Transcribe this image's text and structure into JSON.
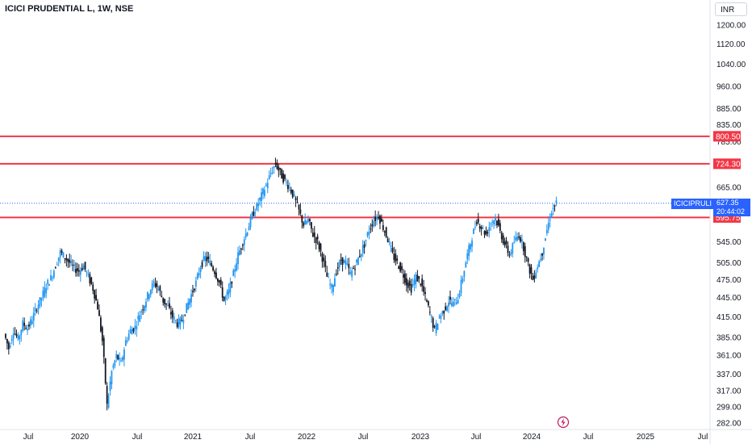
{
  "header": {
    "title": "ICICI PRUDENTIAL L, 1W, NSE",
    "currency": "INR"
  },
  "chart_data": {
    "type": "candlestick",
    "y_scale": "log",
    "y_ticks": [
      "1200.00",
      "1120.00",
      "1040.00",
      "960.00",
      "885.00",
      "835.00",
      "785.00",
      "665.00",
      "545.00",
      "505.00",
      "475.00",
      "445.00",
      "415.00",
      "385.00",
      "361.00",
      "337.00",
      "317.00",
      "299.00",
      "282.00"
    ],
    "x_ticks": [
      "Jul",
      "2020",
      "Jul",
      "2021",
      "Jul",
      "2022",
      "Jul",
      "2023",
      "Jul",
      "2024",
      "Jul",
      "2025",
      "Jul"
    ],
    "horizontal_levels": [
      {
        "value": 800.5,
        "label": "800.50"
      },
      {
        "value": 724.3,
        "label": "724.30"
      },
      {
        "value": 595.75,
        "label": "595.75"
      }
    ],
    "last_price": {
      "value": 627.35,
      "label": "627.35",
      "timer": "20:44:02",
      "symbol": "ICICIPRULI"
    },
    "series": [
      {
        "t": 0,
        "c": 390
      },
      {
        "t": 0.02,
        "c": 370
      },
      {
        "t": 0.04,
        "c": 395
      },
      {
        "t": 0.06,
        "c": 382
      },
      {
        "t": 0.08,
        "c": 405
      },
      {
        "t": 0.1,
        "c": 398
      },
      {
        "t": 0.12,
        "c": 412
      },
      {
        "t": 0.14,
        "c": 430
      },
      {
        "t": 0.16,
        "c": 445
      },
      {
        "t": 0.18,
        "c": 465
      },
      {
        "t": 0.2,
        "c": 478
      },
      {
        "t": 0.22,
        "c": 500
      },
      {
        "t": 0.24,
        "c": 525
      },
      {
        "t": 0.26,
        "c": 515
      },
      {
        "t": 0.28,
        "c": 505
      },
      {
        "t": 0.3,
        "c": 495
      },
      {
        "t": 0.32,
        "c": 490
      },
      {
        "t": 0.34,
        "c": 500
      },
      {
        "t": 0.36,
        "c": 480
      },
      {
        "t": 0.38,
        "c": 460
      },
      {
        "t": 0.4,
        "c": 430
      },
      {
        "t": 0.42,
        "c": 380
      },
      {
        "t": 0.44,
        "c": 300
      },
      {
        "t": 0.46,
        "c": 340
      },
      {
        "t": 0.48,
        "c": 360
      },
      {
        "t": 0.5,
        "c": 350
      },
      {
        "t": 0.52,
        "c": 380
      },
      {
        "t": 0.54,
        "c": 395
      },
      {
        "t": 0.56,
        "c": 400
      },
      {
        "t": 0.58,
        "c": 420
      },
      {
        "t": 0.6,
        "c": 435
      },
      {
        "t": 0.62,
        "c": 455
      },
      {
        "t": 0.64,
        "c": 470
      },
      {
        "t": 0.66,
        "c": 460
      },
      {
        "t": 0.68,
        "c": 440
      },
      {
        "t": 0.7,
        "c": 430
      },
      {
        "t": 0.72,
        "c": 415
      },
      {
        "t": 0.74,
        "c": 405
      },
      {
        "t": 0.76,
        "c": 410
      },
      {
        "t": 0.78,
        "c": 430
      },
      {
        "t": 0.8,
        "c": 450
      },
      {
        "t": 0.82,
        "c": 470
      },
      {
        "t": 0.84,
        "c": 500
      },
      {
        "t": 0.86,
        "c": 515
      },
      {
        "t": 0.88,
        "c": 505
      },
      {
        "t": 0.9,
        "c": 490
      },
      {
        "t": 0.92,
        "c": 470
      },
      {
        "t": 0.94,
        "c": 440
      },
      {
        "t": 0.96,
        "c": 455
      },
      {
        "t": 0.98,
        "c": 485
      },
      {
        "t": 1.0,
        "c": 520
      },
      {
        "t": 1.02,
        "c": 545
      },
      {
        "t": 1.04,
        "c": 570
      },
      {
        "t": 1.06,
        "c": 600
      },
      {
        "t": 1.08,
        "c": 620
      },
      {
        "t": 1.1,
        "c": 645
      },
      {
        "t": 1.12,
        "c": 670
      },
      {
        "t": 1.14,
        "c": 700
      },
      {
        "t": 1.16,
        "c": 725
      },
      {
        "t": 1.18,
        "c": 700
      },
      {
        "t": 1.2,
        "c": 680
      },
      {
        "t": 1.22,
        "c": 665
      },
      {
        "t": 1.24,
        "c": 640
      },
      {
        "t": 1.26,
        "c": 610
      },
      {
        "t": 1.28,
        "c": 580
      },
      {
        "t": 1.3,
        "c": 590
      },
      {
        "t": 1.32,
        "c": 560
      },
      {
        "t": 1.34,
        "c": 545
      },
      {
        "t": 1.36,
        "c": 515
      },
      {
        "t": 1.38,
        "c": 480
      },
      {
        "t": 1.4,
        "c": 460
      },
      {
        "t": 1.42,
        "c": 490
      },
      {
        "t": 1.44,
        "c": 510
      },
      {
        "t": 1.46,
        "c": 505
      },
      {
        "t": 1.48,
        "c": 485
      },
      {
        "t": 1.5,
        "c": 500
      },
      {
        "t": 1.52,
        "c": 520
      },
      {
        "t": 1.54,
        "c": 540
      },
      {
        "t": 1.56,
        "c": 570
      },
      {
        "t": 1.58,
        "c": 590
      },
      {
        "t": 1.6,
        "c": 600
      },
      {
        "t": 1.62,
        "c": 575
      },
      {
        "t": 1.64,
        "c": 550
      },
      {
        "t": 1.66,
        "c": 520
      },
      {
        "t": 1.68,
        "c": 505
      },
      {
        "t": 1.7,
        "c": 490
      },
      {
        "t": 1.72,
        "c": 470
      },
      {
        "t": 1.74,
        "c": 460
      },
      {
        "t": 1.76,
        "c": 480
      },
      {
        "t": 1.78,
        "c": 470
      },
      {
        "t": 1.8,
        "c": 445
      },
      {
        "t": 1.82,
        "c": 420
      },
      {
        "t": 1.84,
        "c": 395
      },
      {
        "t": 1.86,
        "c": 415
      },
      {
        "t": 1.88,
        "c": 425
      },
      {
        "t": 1.9,
        "c": 440
      },
      {
        "t": 1.92,
        "c": 435
      },
      {
        "t": 1.94,
        "c": 445
      },
      {
        "t": 1.96,
        "c": 480
      },
      {
        "t": 1.98,
        "c": 520
      },
      {
        "t": 2.0,
        "c": 555
      },
      {
        "t": 2.02,
        "c": 590
      },
      {
        "t": 2.04,
        "c": 575
      },
      {
        "t": 2.06,
        "c": 560
      },
      {
        "t": 2.08,
        "c": 585
      },
      {
        "t": 2.1,
        "c": 595
      },
      {
        "t": 2.12,
        "c": 565
      },
      {
        "t": 2.14,
        "c": 540
      },
      {
        "t": 2.16,
        "c": 520
      },
      {
        "t": 2.18,
        "c": 545
      },
      {
        "t": 2.2,
        "c": 560
      },
      {
        "t": 2.22,
        "c": 535
      },
      {
        "t": 2.24,
        "c": 500
      },
      {
        "t": 2.26,
        "c": 475
      },
      {
        "t": 2.28,
        "c": 500
      },
      {
        "t": 2.3,
        "c": 525
      },
      {
        "t": 2.32,
        "c": 570
      },
      {
        "t": 2.34,
        "c": 610
      },
      {
        "t": 2.36,
        "c": 627.35
      }
    ]
  }
}
